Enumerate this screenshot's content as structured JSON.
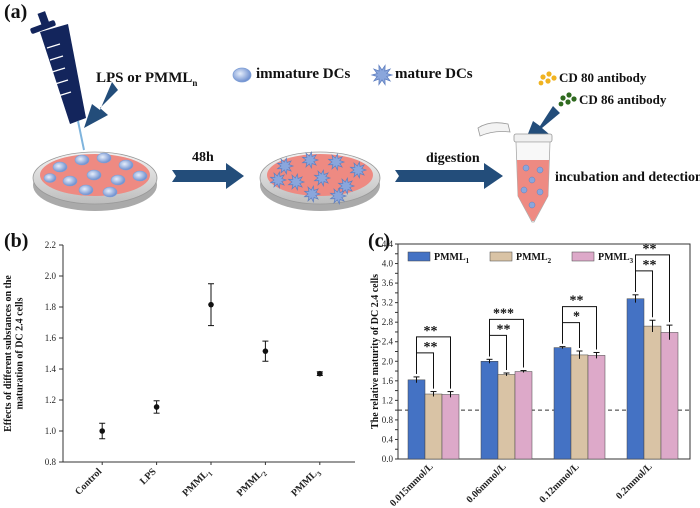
{
  "panel_a": {
    "label": "(a)",
    "reagent_label_main": "LPS or PMML",
    "reagent_label_sub": "n",
    "legend_immature": "immature DCs",
    "legend_mature": "mature DCs",
    "legend_cd80": "CD 80  antibody",
    "legend_cd86": "CD 86  antibody",
    "step_time": "48h",
    "step_digest": "digestion",
    "step_final": "incubation and detection",
    "colors": {
      "dish": "#ee8a82",
      "cell": "#7f9fd6",
      "arrow": "#234d7a",
      "pipette": "#13255c",
      "cd80": "#f0b321",
      "cd86": "#2f6a1f"
    }
  },
  "panel_b": {
    "label": "(b)"
  },
  "panel_c": {
    "label": "(c)"
  },
  "chart_data": [
    {
      "type": "scatter",
      "title": "",
      "xlabel": "",
      "ylabel": "Effects of different substances on the maturation of DC 2.4 cells",
      "categories": [
        {
          "main": "Control",
          "sub": ""
        },
        {
          "main": "LPS",
          "sub": ""
        },
        {
          "main": "PMML",
          "sub": "1"
        },
        {
          "main": "PMML",
          "sub": "2"
        },
        {
          "main": "PMML",
          "sub": "3"
        }
      ],
      "values": [
        1.0,
        1.155,
        1.815,
        1.515,
        1.37
      ],
      "errors": [
        0.05,
        0.04,
        0.135,
        0.065,
        0.012
      ],
      "ylim": [
        0.8,
        2.2
      ],
      "yticks": [
        "0.8",
        "1.0",
        "1.2",
        "1.4",
        "1.6",
        "1.8",
        "2.0",
        "2.2"
      ],
      "grid": false
    },
    {
      "type": "bar",
      "title": "",
      "xlabel": "",
      "ylabel": "The relative maturity of DC 2.4 cells",
      "categories": [
        "0.015mmol/L",
        "0.06mmol/L",
        "0.12mmol/L",
        "0.2mmol/L"
      ],
      "series": [
        {
          "name": "PMML",
          "name_sub": "1",
          "color": "#4472c4",
          "values": [
            1.62,
            2.0,
            2.28,
            3.28
          ],
          "errors": [
            0.06,
            0.04,
            0.02,
            0.08
          ]
        },
        {
          "name": "PMML",
          "name_sub": "2",
          "color": "#d9c3a5",
          "values": [
            1.33,
            1.73,
            2.13,
            2.72
          ],
          "errors": [
            0.05,
            0.03,
            0.08,
            0.12
          ]
        },
        {
          "name": "PMML",
          "name_sub": "3",
          "color": "#dda9c9",
          "values": [
            1.32,
            1.79,
            2.12,
            2.59
          ],
          "errors": [
            0.06,
            0.02,
            0.06,
            0.15
          ]
        }
      ],
      "ylim": [
        0.0,
        4.4
      ],
      "yticks": [
        "0.0",
        "0.2",
        "0.4",
        "0.6",
        "0.8",
        "1.0",
        "1.2",
        "1.4",
        "1.6",
        "1.8",
        "2.0",
        "2.2",
        "2.4",
        "2.6",
        "2.8",
        "3.0",
        "3.2",
        "3.4",
        "3.6",
        "3.8",
        "4.0",
        "4.2",
        "4.4"
      ],
      "reference_line": 1.0,
      "significance": [
        {
          "group": 0,
          "pair": [
            0,
            2
          ],
          "mark": "**"
        },
        {
          "group": 0,
          "pair": [
            0,
            1
          ],
          "mark": "**"
        },
        {
          "group": 1,
          "pair": [
            0,
            2
          ],
          "mark": "***"
        },
        {
          "group": 1,
          "pair": [
            0,
            1
          ],
          "mark": "**"
        },
        {
          "group": 2,
          "pair": [
            0,
            2
          ],
          "mark": "**"
        },
        {
          "group": 2,
          "pair": [
            0,
            1
          ],
          "mark": "*"
        },
        {
          "group": 3,
          "pair": [
            0,
            2
          ],
          "mark": "**"
        },
        {
          "group": 3,
          "pair": [
            0,
            1
          ],
          "mark": "**"
        }
      ],
      "legend_position": "top",
      "grid": false
    }
  ]
}
